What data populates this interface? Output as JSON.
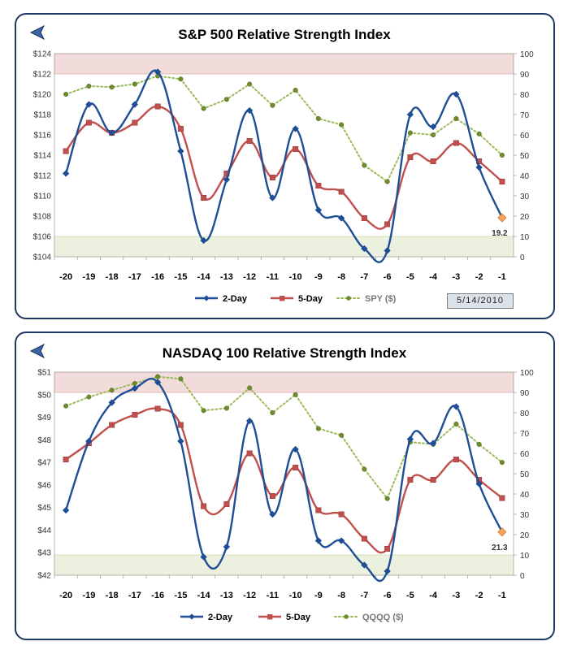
{
  "chart_data": [
    {
      "type": "line",
      "title": "S&P 500 Relative Strength Index",
      "categories": [
        "-20",
        "-19",
        "-18",
        "-17",
        "-16",
        "-15",
        "-14",
        "-13",
        "-12",
        "-11",
        "-10",
        "-9",
        "-8",
        "-7",
        "-6",
        "-5",
        "-4",
        "-3",
        "-2",
        "-1"
      ],
      "left_axis": {
        "range": [
          104,
          124
        ],
        "ticks": [
          "$104",
          "$106",
          "$108",
          "$110",
          "$112",
          "$114",
          "$116",
          "$118",
          "$120",
          "$122",
          "$124"
        ]
      },
      "right_axis": {
        "range": [
          0,
          100
        ],
        "ticks": [
          "0",
          "10",
          "20",
          "30",
          "40",
          "50",
          "60",
          "70",
          "80",
          "90",
          "100"
        ]
      },
      "bands": {
        "overbought": [
          90,
          100
        ],
        "oversold": [
          0,
          10
        ]
      },
      "series": [
        {
          "name": "2-Day",
          "axis": "right",
          "color": "#1f4e96",
          "marker": "diamond",
          "style": "solid",
          "values": [
            41,
            75,
            61,
            75,
            91,
            52,
            8,
            38,
            72,
            29,
            63,
            23,
            19,
            4,
            3,
            70,
            64,
            80,
            44,
            19.2
          ]
        },
        {
          "name": "5-Day",
          "axis": "right",
          "color": "#c0504d",
          "marker": "square",
          "style": "solid",
          "values": [
            52,
            66,
            61,
            66,
            74,
            63,
            29,
            41,
            57,
            39,
            53,
            35,
            32,
            19,
            16,
            49,
            47,
            56,
            47,
            37
          ]
        },
        {
          "name": "SPY ($)",
          "axis": "left",
          "color": "#9bbb59",
          "marker": "circle",
          "style": "dotted",
          "values": [
            120,
            120.8,
            120.7,
            121,
            121.8,
            121.5,
            118.6,
            119.5,
            121,
            118.9,
            120.4,
            117.6,
            117,
            113,
            111.4,
            116.2,
            116,
            117.6,
            116.1,
            114
          ]
        }
      ],
      "last_label": "19.2",
      "date_stamp": "5/14/2010"
    },
    {
      "type": "line",
      "title": "NASDAQ 100 Relative Strength Index",
      "categories": [
        "-20",
        "-19",
        "-18",
        "-17",
        "-16",
        "-15",
        "-14",
        "-13",
        "-12",
        "-11",
        "-10",
        "-9",
        "-8",
        "-7",
        "-6",
        "-5",
        "-4",
        "-3",
        "-2",
        "-1"
      ],
      "left_axis": {
        "range": [
          42,
          51
        ],
        "ticks": [
          "$42",
          "$43",
          "$44",
          "$45",
          "$46",
          "$47",
          "$48",
          "$49",
          "$50",
          "$51"
        ]
      },
      "right_axis": {
        "range": [
          0,
          100
        ],
        "ticks": [
          "0",
          "10",
          "20",
          "30",
          "40",
          "50",
          "60",
          "70",
          "80",
          "90",
          "100"
        ]
      },
      "bands": {
        "overbought": [
          90,
          100
        ],
        "oversold": [
          0,
          10
        ]
      },
      "series": [
        {
          "name": "2-Day",
          "axis": "right",
          "color": "#1f4e96",
          "marker": "diamond",
          "style": "solid",
          "values": [
            32,
            66,
            85,
            92,
            95,
            66,
            9,
            14,
            76,
            30,
            62,
            17,
            17,
            5,
            2,
            67,
            65,
            83,
            45,
            21.3
          ]
        },
        {
          "name": "5-Day",
          "axis": "right",
          "color": "#c0504d",
          "marker": "square",
          "style": "solid",
          "values": [
            57,
            65,
            74,
            79,
            82,
            74,
            34,
            35,
            60,
            39,
            53,
            32,
            30,
            18,
            13,
            47,
            47,
            57,
            47,
            38
          ]
        },
        {
          "name": "QQQQ ($)",
          "axis": "left",
          "color": "#9bbb59",
          "marker": "circle",
          "style": "dotted",
          "values": [
            49.5,
            49.9,
            50.2,
            50.5,
            50.8,
            50.7,
            49.3,
            49.4,
            50.3,
            49.2,
            50,
            48.5,
            48.2,
            46.7,
            45.4,
            47.9,
            47.8,
            48.7,
            47.8,
            47
          ]
        }
      ],
      "last_label": "21.3"
    }
  ]
}
